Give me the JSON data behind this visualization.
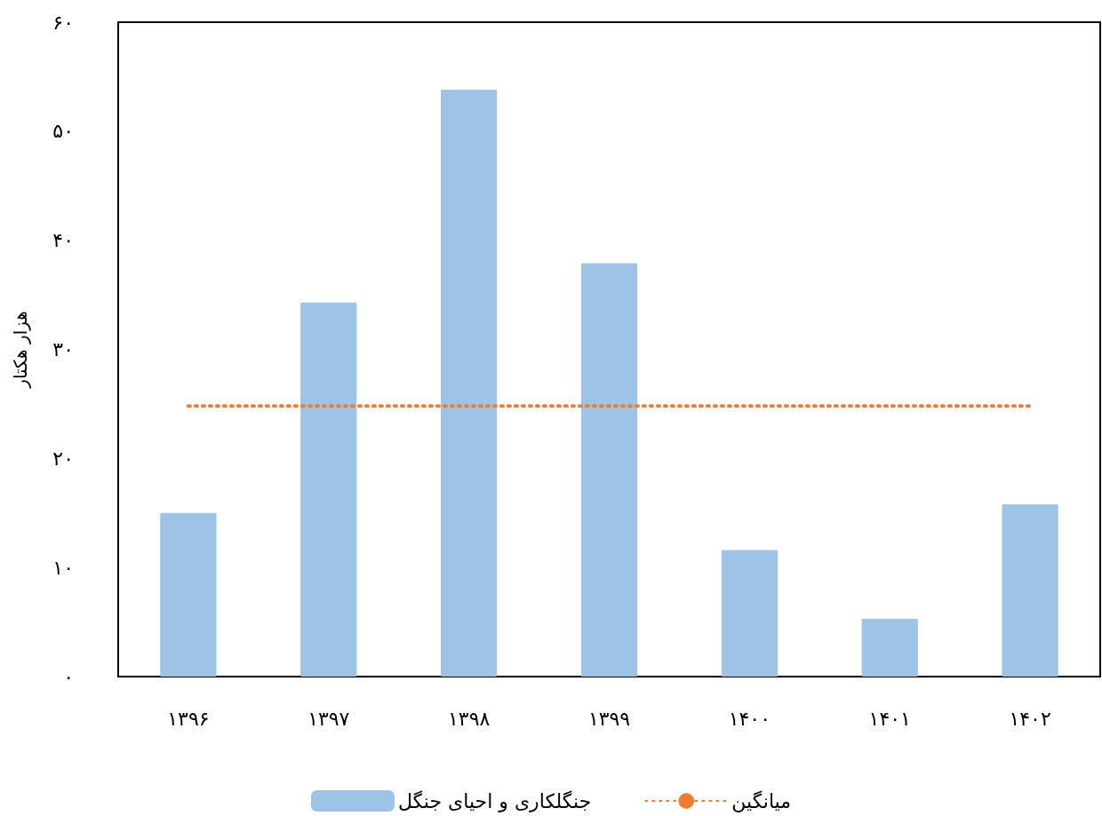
{
  "chart_data": {
    "type": "bar",
    "ylabel": "هزار هکتار",
    "categories": [
      "۱۳۹۶",
      "۱۳۹۷",
      "۱۳۹۸",
      "۱۳۹۹",
      "۱۴۰۰",
      "۱۴۰۱",
      "۱۴۰۲"
    ],
    "series": [
      {
        "name": "جنگلکاری و احیای جنگل",
        "color": "#9dc3e6",
        "values": [
          15,
          34.3,
          53.8,
          37.9,
          11.6,
          5.3,
          15.8
        ]
      },
      {
        "name": "میانگین",
        "type": "line",
        "color": "#ed7d31",
        "line_style": "dotted",
        "marker": "none",
        "values": [
          24.8,
          24.8,
          24.8,
          24.8,
          24.8,
          24.8,
          24.8
        ]
      }
    ],
    "ylim": [
      0,
      60
    ],
    "yticks": [
      {
        "value": 0,
        "label": "۰"
      },
      {
        "value": 10,
        "label": "۱۰"
      },
      {
        "value": 20,
        "label": "۲۰"
      },
      {
        "value": 30,
        "label": "۳۰"
      },
      {
        "value": 40,
        "label": "۴۰"
      },
      {
        "value": 50,
        "label": "۵۰"
      },
      {
        "value": 60,
        "label": "۶۰"
      }
    ],
    "legend": "bottom",
    "grid": false
  }
}
